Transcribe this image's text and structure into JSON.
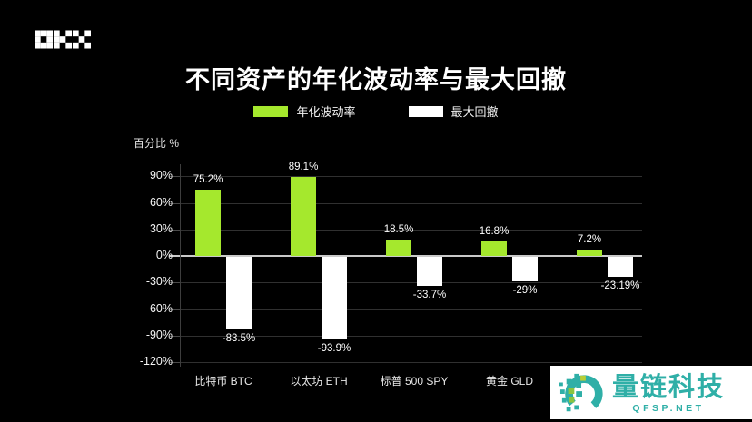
{
  "brand": {
    "logo_text": "OKX"
  },
  "title": "不同资产的年化波动率与最大回撤",
  "legend": [
    {
      "label": "年化波动率",
      "color": "#A5E82D"
    },
    {
      "label": "最大回撤",
      "color": "#FFFFFF"
    }
  ],
  "axis": {
    "unit_label": "百分比 %",
    "ticks": [
      "90%",
      "60%",
      "30%",
      "0%",
      "-30%",
      "-60%",
      "-90%",
      "-120%"
    ]
  },
  "chart_data": {
    "type": "bar",
    "title": "不同资产的年化波动率与最大回撤",
    "ylabel": "百分比 %",
    "ylim": [
      -120,
      90
    ],
    "grid": true,
    "legend_position": "top",
    "categories": [
      "比特币 BTC",
      "以太坊 ETH",
      "标普 500 SPY",
      "黄金 GLD",
      ""
    ],
    "series": [
      {
        "name": "年化波动率",
        "color": "#A5E82D",
        "values": [
          75.2,
          89.1,
          18.5,
          16.8,
          7.2
        ],
        "labels": [
          "75.2%",
          "89.1%",
          "18.5%",
          "16.8%",
          "7.2%"
        ]
      },
      {
        "name": "最大回撤",
        "color": "#FFFFFF",
        "values": [
          -83.5,
          -93.9,
          -33.7,
          -29,
          -23.19
        ],
        "labels": [
          "-83.5%",
          "-93.9%",
          "-33.7%",
          "-29%",
          "-23.19%"
        ]
      }
    ]
  },
  "watermark": {
    "name": "量链科技",
    "site": "QFSP.NET",
    "color": "#2FAFA7",
    "square_green": "#8BC53F",
    "square_yellow": "#B9CE35"
  }
}
